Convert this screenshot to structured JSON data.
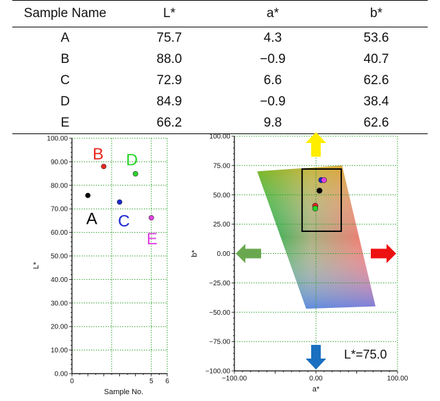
{
  "table": {
    "headers": [
      "Sample Name",
      "L*",
      "a*",
      "b*"
    ],
    "rows": [
      [
        "A",
        "75.7",
        "4.3",
        "53.6"
      ],
      [
        "B",
        "88.0",
        "−0.9",
        "40.7"
      ],
      [
        "C",
        "72.9",
        "6.6",
        "62.6"
      ],
      [
        "D",
        "84.9",
        "−0.9",
        "38.4"
      ],
      [
        "E",
        "66.2",
        "9.8",
        "62.6"
      ]
    ]
  },
  "chart_data": [
    {
      "type": "scatter",
      "xlabel": "Sample No.",
      "ylabel": "L*",
      "xlim": [
        0,
        6
      ],
      "ylim": [
        0,
        100
      ],
      "x_ticks": [
        "0",
        "5",
        "6"
      ],
      "y_ticks": [
        "0.00",
        "10.00",
        "20.00",
        "30.00",
        "40.00",
        "50.00",
        "60.00",
        "70.00",
        "80.00",
        "90.00",
        "100.00"
      ],
      "grid": true,
      "points": [
        {
          "label": "A",
          "x": 1,
          "y": 75.7,
          "color": "#000000"
        },
        {
          "label": "B",
          "x": 2,
          "y": 88.0,
          "color": "#e8261e"
        },
        {
          "label": "C",
          "x": 3,
          "y": 72.9,
          "color": "#1a28d0"
        },
        {
          "label": "D",
          "x": 4,
          "y": 84.9,
          "color": "#2ad42a"
        },
        {
          "label": "E",
          "x": 5,
          "y": 66.2,
          "color": "#e040e0"
        }
      ],
      "annotations": [
        {
          "text": "A",
          "color": "#000000",
          "x": 0.9,
          "y": 63.5
        },
        {
          "text": "B",
          "color": "#e8261e",
          "x": 1.3,
          "y": 91
        },
        {
          "text": "C",
          "color": "#1a28d0",
          "x": 2.9,
          "y": 62.5
        },
        {
          "text": "D",
          "color": "#2ad42a",
          "x": 3.4,
          "y": 88.5
        },
        {
          "text": "E",
          "color": "#e040e0",
          "x": 4.7,
          "y": 55
        }
      ]
    },
    {
      "type": "scatter",
      "xlabel": "a*",
      "ylabel": "b*",
      "xlim": [
        -100,
        100
      ],
      "ylim": [
        -100,
        100
      ],
      "x_ticks": [
        "−100.00",
        "0.00",
        "100.00"
      ],
      "y_ticks": [
        "−100.00",
        "−75.00",
        "−50.00",
        "−25.00",
        "0.00",
        "25.00",
        "50.00",
        "75.00",
        "100.00"
      ],
      "grid": true,
      "annotation": "L*=75.0",
      "points": [
        {
          "label": "A",
          "x": 4.3,
          "y": 53.6,
          "color": "#000000"
        },
        {
          "label": "B",
          "x": -0.9,
          "y": 40.7,
          "color": "#e8261e"
        },
        {
          "label": "C",
          "x": 6.6,
          "y": 62.6,
          "color": "#1a28d0"
        },
        {
          "label": "D",
          "x": -0.9,
          "y": 38.4,
          "color": "#2ad42a"
        },
        {
          "label": "E",
          "x": 9.8,
          "y": 62.6,
          "color": "#e040e0"
        }
      ],
      "zoom_box": {
        "a": [
          -17,
          31
        ],
        "b": [
          19,
          72
        ]
      },
      "arrows": {
        "up": "#ffee00",
        "down": "#1a6fc0",
        "left": "#6aa84f",
        "right": "#ee1111"
      }
    }
  ]
}
